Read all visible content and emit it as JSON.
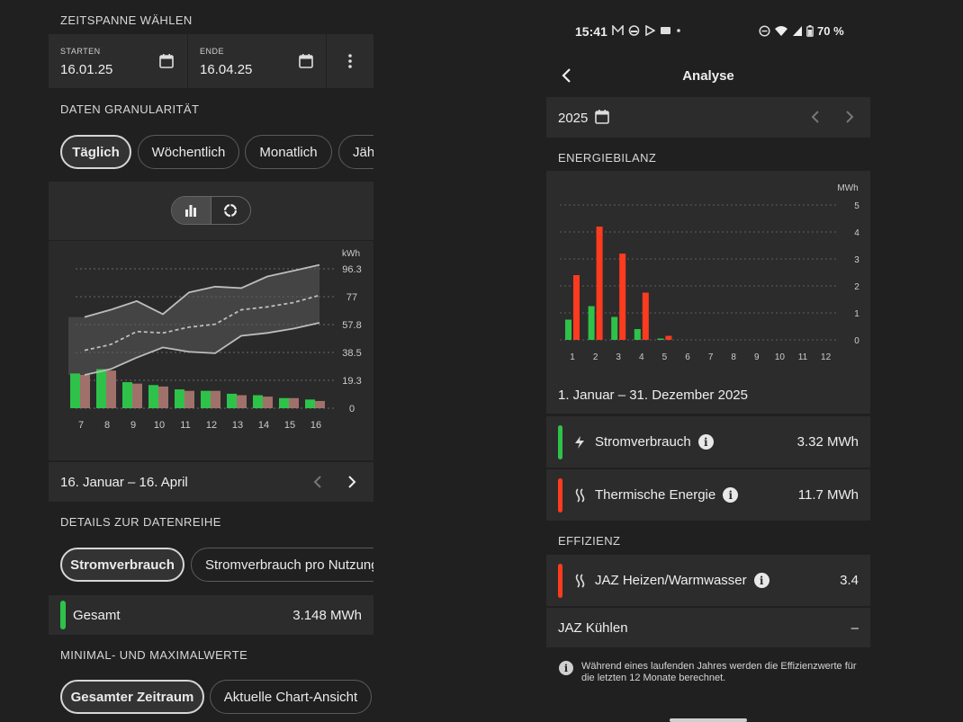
{
  "left": {
    "time_range_title": "ZEITSPANNE WÄHLEN",
    "start_label": "STARTEN",
    "start_value": "16.01.25",
    "end_label": "ENDE",
    "end_value": "16.04.25",
    "granularity_title": "DATEN GRANULARITÄT",
    "granularity_options": [
      "Täglich",
      "Wöchentlich",
      "Monatlich",
      "Jäh"
    ],
    "chart_unit": "kWh",
    "period_label": "16. Januar – 16. April",
    "series_title": "DETAILS ZUR DATENREIHE",
    "series_options": [
      "Stromverbrauch",
      "Stromverbrauch pro Nutzung"
    ],
    "total_label": "Gesamt",
    "total_value": "3.148 MWh",
    "minmax_title": "MINIMAL- UND MAXIMALWERTE",
    "minmax_options": [
      "Gesamter Zeitraum",
      "Aktuelle Chart-Ansicht"
    ]
  },
  "right": {
    "status_time": "15:41",
    "status_battery": "70 %",
    "title": "Analyse",
    "year": "2025",
    "energy_title": "ENERGIEBILANZ",
    "chart_unit": "MWh",
    "period_label": "1. Januar – 31. Dezember 2025",
    "power_label": "Stromverbrauch",
    "power_value": "3.32 MWh",
    "thermal_label": "Thermische Energie",
    "thermal_value": "11.7 MWh",
    "efficiency_title": "EFFIZIENZ",
    "jaz_heat_label": "JAZ Heizen/Warmwasser",
    "jaz_heat_value": "3.4",
    "jaz_cool_label": "JAZ Kühlen",
    "jaz_cool_value": "–",
    "note": "Während eines laufenden Jahres werden die Effizienzwerte für die letzten 12 Monate berechnet."
  },
  "colors": {
    "green": "#2fc24a",
    "red": "#ff3b1f",
    "brown": "#a0716a"
  },
  "chart_data": [
    {
      "type": "bar",
      "categories": [
        "7",
        "8",
        "9",
        "10",
        "11",
        "12",
        "13",
        "14",
        "15",
        "16"
      ],
      "ylabel": "kWh",
      "yticks": [
        "96.3",
        "77",
        "57.8",
        "38.5",
        "19.3",
        "0"
      ],
      "ylim": [
        0,
        96.3
      ],
      "series": [
        {
          "values": [
            24,
            27,
            18,
            16,
            13,
            12,
            10,
            9,
            7,
            6
          ]
        },
        {
          "values": [
            23,
            26,
            17,
            15,
            12,
            12,
            9,
            8,
            7,
            5
          ]
        }
      ],
      "lines": [
        {
          "values": [
            63,
            68,
            74,
            65,
            80,
            84,
            83,
            91,
            95,
            99
          ]
        },
        {
          "values": [
            40,
            44,
            53,
            52,
            56,
            58,
            68,
            70,
            73,
            78
          ]
        },
        {
          "values": [
            23,
            27,
            35,
            42,
            39,
            38,
            50,
            52,
            55,
            59
          ]
        }
      ]
    },
    {
      "type": "bar",
      "categories": [
        "1",
        "2",
        "3",
        "4",
        "5",
        "6",
        "7",
        "8",
        "9",
        "10",
        "11",
        "12"
      ],
      "ylabel": "MWh",
      "yticks": [
        "5",
        "4",
        "3",
        "2",
        "1",
        "0"
      ],
      "ylim": [
        0,
        5
      ],
      "series": [
        {
          "values": [
            0.75,
            1.25,
            0.85,
            0.4,
            0.05,
            0,
            0,
            0,
            0,
            0,
            0,
            0
          ]
        },
        {
          "values": [
            2.4,
            4.2,
            3.2,
            1.75,
            0.15,
            0,
            0,
            0,
            0,
            0,
            0,
            0
          ]
        }
      ]
    }
  ]
}
